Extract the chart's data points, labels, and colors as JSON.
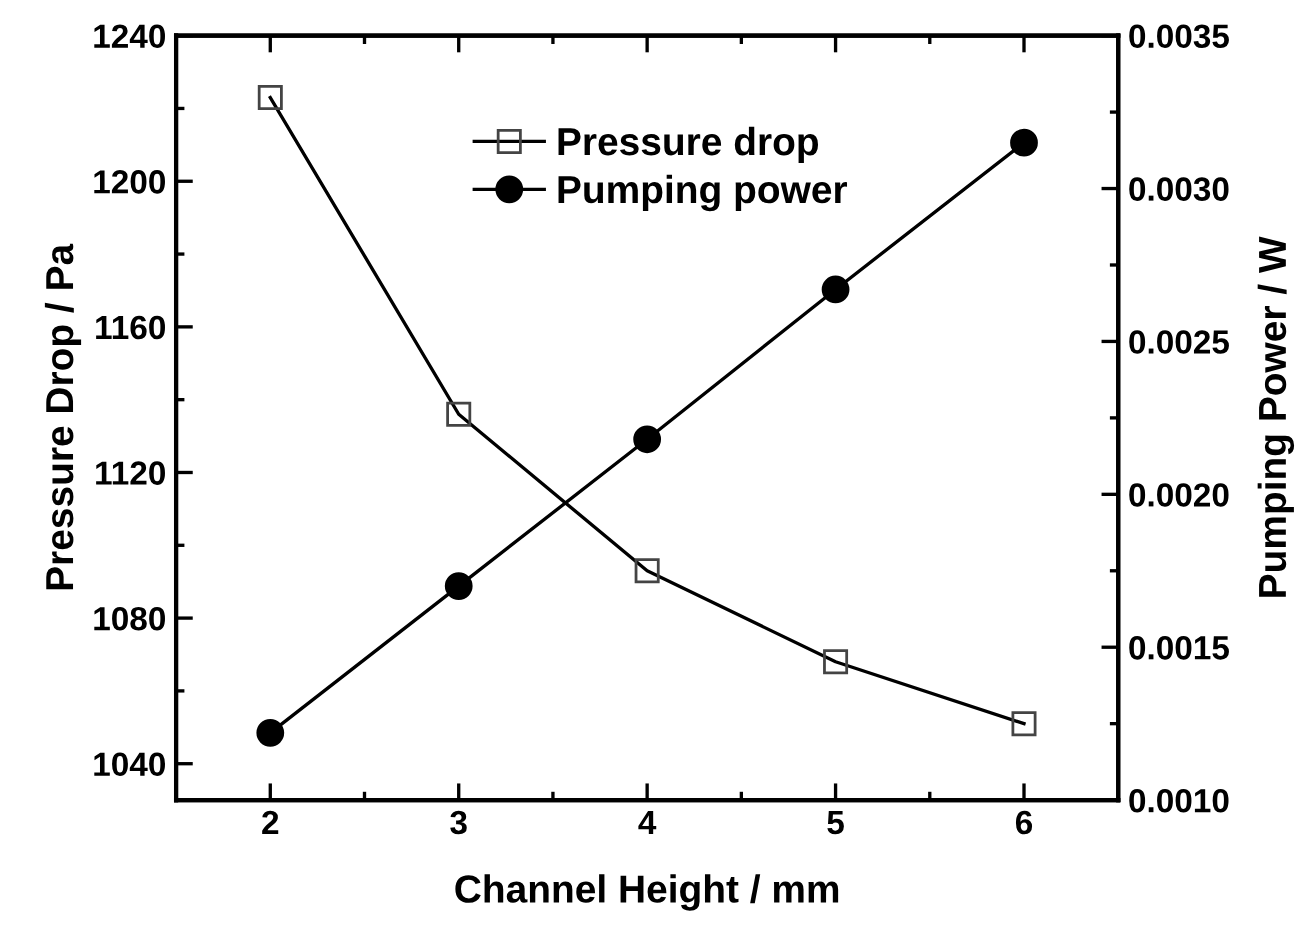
{
  "chart_data": {
    "type": "line",
    "xlabel": "Channel Height / mm",
    "ylabel": "Pressure Drop / Pa",
    "y2label": "Pumping Power / W",
    "x": [
      2,
      3,
      4,
      5,
      6
    ],
    "xlim": [
      1.5,
      6.5
    ],
    "xticks": [
      2,
      3,
      4,
      5,
      6
    ],
    "ylim": [
      1030,
      1240
    ],
    "yticks": [
      1040,
      1080,
      1120,
      1160,
      1200,
      1240
    ],
    "y2lim": [
      0.001,
      0.0035
    ],
    "y2ticks": [
      {
        "value": 0.001,
        "label": "0.0010"
      },
      {
        "value": 0.0015,
        "label": "0.0015"
      },
      {
        "value": 0.002,
        "label": "0.0020"
      },
      {
        "value": 0.0025,
        "label": "0.0025"
      },
      {
        "value": 0.003,
        "label": "0.0030"
      },
      {
        "value": 0.0035,
        "label": "0.0035"
      }
    ],
    "legend": "top",
    "grid": false,
    "line_style": "solid",
    "series": [
      {
        "name": "Pressure drop",
        "color": "#000000",
        "marker": "square",
        "values": [
          1223,
          1136,
          1093,
          1068,
          1051
        ]
      },
      {
        "name": "Pumping power",
        "color": "#000000",
        "marker": "circle",
        "axis": "y2",
        "values": [
          0.00122,
          0.0017,
          0.00218,
          0.00267,
          0.00315
        ]
      }
    ]
  }
}
